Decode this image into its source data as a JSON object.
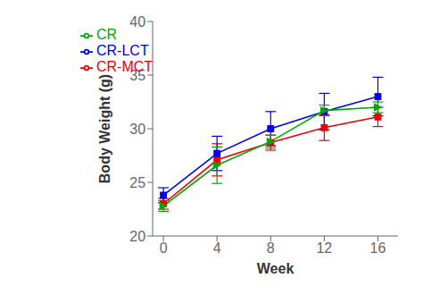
{
  "chart_data": {
    "type": "line",
    "x": [
      0,
      4,
      8,
      12,
      16
    ],
    "series": [
      {
        "name": "CR-MCT",
        "color": "#ee0000",
        "marker": "square",
        "values": [
          23.0,
          27.1,
          28.7,
          30.1,
          31.1
        ],
        "errors": [
          0.5,
          1.5,
          0.7,
          1.2,
          0.9
        ]
      },
      {
        "name": "CR-LCT",
        "color": "#0000ee",
        "marker": "square",
        "values": [
          23.8,
          27.7,
          30.0,
          31.6,
          33.0
        ],
        "errors": [
          0.7,
          1.6,
          1.6,
          1.7,
          1.8
        ]
      },
      {
        "name": "CR",
        "color": "#00aa00",
        "marker": "triangle",
        "values": [
          22.8,
          26.6,
          28.8,
          31.7,
          32.0
        ],
        "errors": [
          0.5,
          1.7,
          0.6,
          0.5,
          0.5
        ]
      }
    ],
    "xlabel": "Week",
    "ylabel": "Body Weight (g)",
    "xlim": [
      -0.8,
      17.5
    ],
    "ylim": [
      20,
      40
    ],
    "xticks": [
      0,
      4,
      8,
      12,
      16
    ],
    "yticks": [
      20,
      25,
      30,
      35,
      40
    ],
    "grid": false,
    "legend": "upper left"
  }
}
